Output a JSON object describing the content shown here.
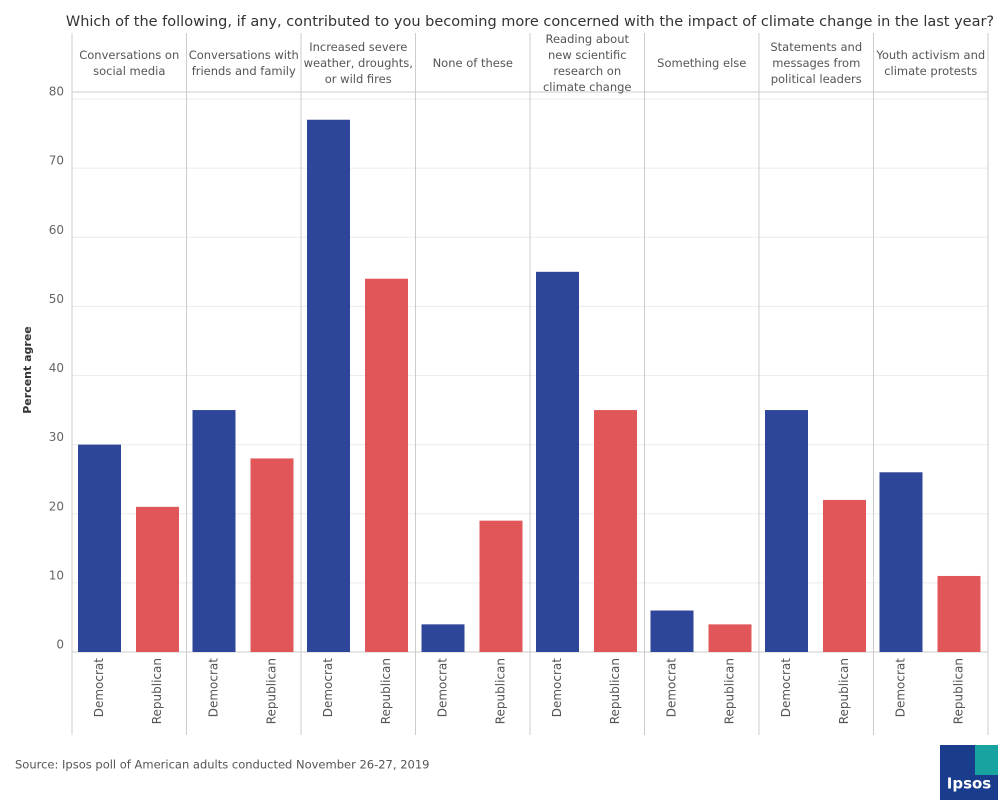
{
  "chart_data": {
    "type": "bar",
    "title": "Which of the following, if any, contributed to you becoming more concerned with the impact of climate change in the last year?",
    "y_label": "Percent agree",
    "categories": [
      "Conversations on social media",
      "Conversations with friends and family",
      "Increased severe weather, droughts, or wild fires",
      "None of these",
      "Reading about new scientific research on climate change",
      "Something else",
      "Statements and messages from political leaders",
      "Youth activism and climate protests"
    ],
    "series": [
      {
        "name": "Democrat",
        "color": "#2e4699",
        "values": [
          30,
          35,
          77,
          4,
          55,
          6,
          35,
          26
        ]
      },
      {
        "name": "Republican",
        "color": "#e15759",
        "values": [
          21,
          28,
          54,
          19,
          35,
          4,
          22,
          11
        ]
      }
    ],
    "ylim": [
      0,
      80
    ],
    "yticks": [
      0,
      10,
      20,
      30,
      40,
      50,
      60,
      70,
      80
    ],
    "grid": true,
    "source": "Source: Ipsos poll of American adults conducted November 26-27, 2019",
    "logo": "Ipsos"
  }
}
